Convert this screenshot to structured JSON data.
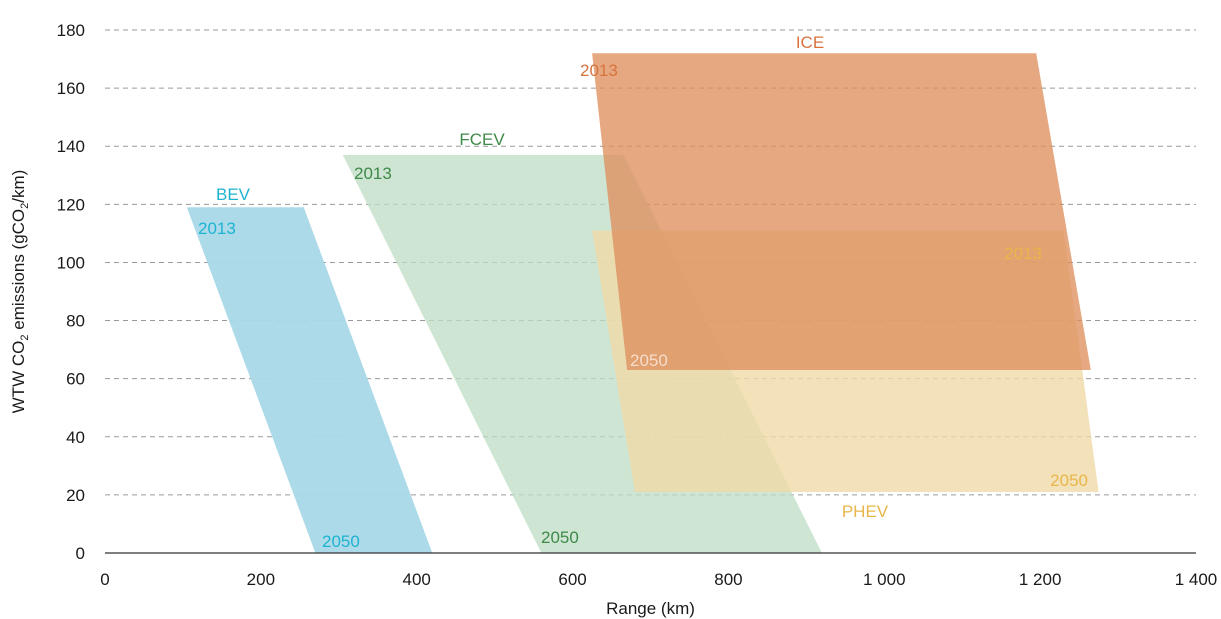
{
  "chart_data": {
    "type": "area",
    "xlabel": "Range (km)",
    "ylabel_main": "WTW CO",
    "ylabel_sub": "2",
    "ylabel_mid": " emissions (gCO",
    "ylabel_sub2": "2",
    "ylabel_end": "/km)",
    "xlim": [
      0,
      1400
    ],
    "ylim": [
      0,
      180
    ],
    "x_ticks": [
      0,
      200,
      400,
      600,
      800,
      1000,
      1200,
      1400
    ],
    "x_tick_labels": [
      "0",
      "200",
      "400",
      "600",
      "800",
      "1 000",
      "1 200",
      "1 400"
    ],
    "y_ticks": [
      0,
      20,
      40,
      60,
      80,
      100,
      120,
      140,
      160,
      180
    ],
    "y_tick_labels": [
      "0",
      "20",
      "40",
      "60",
      "80",
      "100",
      "120",
      "140",
      "160",
      "180"
    ],
    "grid": true,
    "series": [
      {
        "name": "BEV",
        "color": "#a8d8e8",
        "opacity": 0.95,
        "label_color": "#1fb3d1",
        "polygon": [
          [
            105,
            119
          ],
          [
            255,
            119
          ],
          [
            420,
            0
          ],
          [
            270,
            0
          ]
        ],
        "year_start": "2013",
        "year_end": "2050"
      },
      {
        "name": "FCEV",
        "color": "#bfdcc6",
        "opacity": 0.75,
        "label_color": "#3e8a48",
        "polygon": [
          [
            305,
            137
          ],
          [
            665,
            137
          ],
          [
            920,
            0
          ],
          [
            560,
            0
          ]
        ],
        "year_start": "2013",
        "year_end": "2050"
      },
      {
        "name": "PHEV",
        "color": "#f0d9a8",
        "opacity": 0.8,
        "label_color": "#e8b64a",
        "polygon": [
          [
            625,
            111
          ],
          [
            1230,
            111
          ],
          [
            1275,
            21
          ],
          [
            680,
            21
          ]
        ],
        "year_start": "2013",
        "year_end": "2050"
      },
      {
        "name": "ICE",
        "color": "#de8f5e",
        "opacity": 0.78,
        "label_color": "#d9733d",
        "polygon": [
          [
            625,
            172
          ],
          [
            1195,
            172
          ],
          [
            1265,
            63
          ],
          [
            670,
            63
          ]
        ],
        "year_start": "2013",
        "year_end": "2050"
      }
    ]
  }
}
